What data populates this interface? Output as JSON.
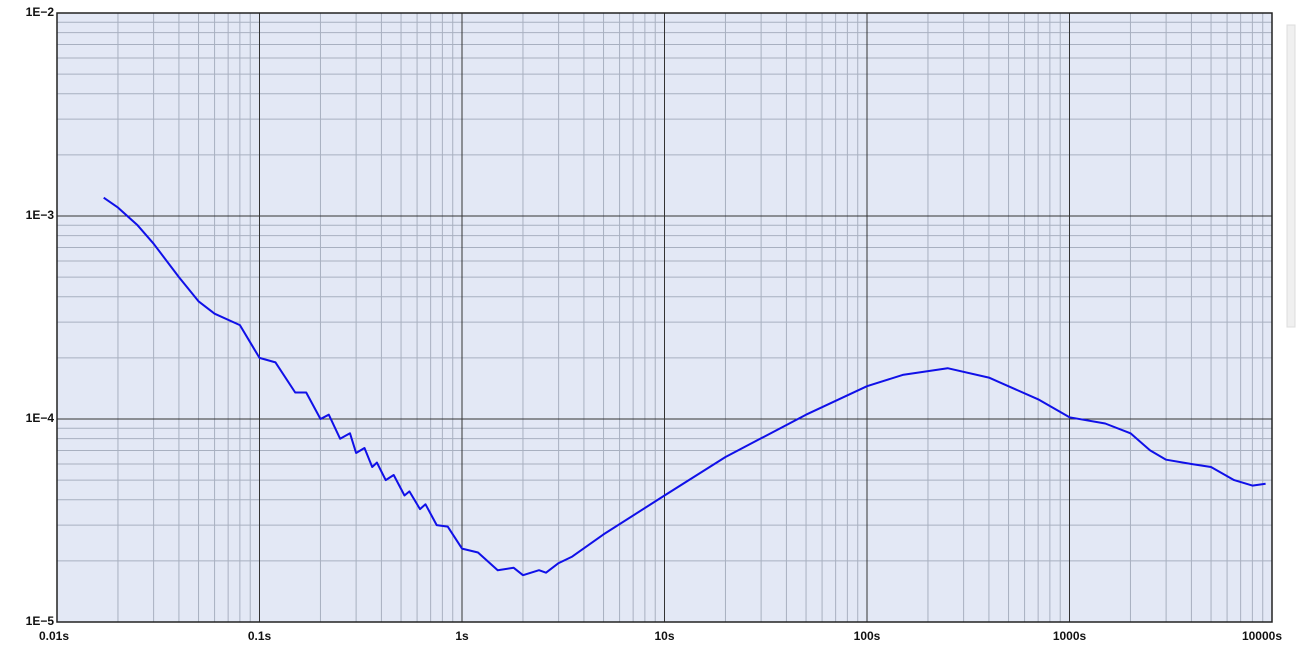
{
  "chart_data": {
    "type": "line",
    "x_log": true,
    "y_log": true,
    "grid": true,
    "minor_grid": true,
    "xlim": [
      0.01,
      10000
    ],
    "ylim": [
      1e-05,
      0.01
    ],
    "xticks": [
      {
        "value": 0.01,
        "label": "0.01s"
      },
      {
        "value": 0.1,
        "label": "0.1s"
      },
      {
        "value": 1,
        "label": "1s"
      },
      {
        "value": 10,
        "label": "10s"
      },
      {
        "value": 100,
        "label": "100s"
      },
      {
        "value": 1000,
        "label": "1000s"
      },
      {
        "value": 10000,
        "label": "10000s"
      }
    ],
    "yticks": [
      {
        "value": 1e-05,
        "label": "1E−5"
      },
      {
        "value": 0.0001,
        "label": "1E−4"
      },
      {
        "value": 0.001,
        "label": "1E−3"
      },
      {
        "value": 0.01,
        "label": "1E−2"
      }
    ],
    "x": [
      0.017,
      0.02,
      0.025,
      0.03,
      0.04,
      0.05,
      0.06,
      0.08,
      0.1,
      0.12,
      0.15,
      0.17,
      0.2,
      0.22,
      0.25,
      0.28,
      0.3,
      0.33,
      0.36,
      0.38,
      0.42,
      0.46,
      0.52,
      0.55,
      0.62,
      0.66,
      0.75,
      0.85,
      1.0,
      1.2,
      1.5,
      1.8,
      2.0,
      2.4,
      2.6,
      3.0,
      3.5,
      5,
      10,
      20,
      50,
      100,
      150,
      250,
      400,
      700,
      1000,
      1500,
      2000,
      2500,
      3000,
      4000,
      5000,
      6500,
      8000,
      9300
    ],
    "series": [
      {
        "color": "#1010e8",
        "values": [
          0.00123,
          0.0011,
          0.0009,
          0.00073,
          0.0005,
          0.00038,
          0.00033,
          0.00029,
          0.0002,
          0.00019,
          0.000135,
          0.000135,
          0.0001,
          0.000105,
          8e-05,
          8.5e-05,
          6.8e-05,
          7.2e-05,
          5.8e-05,
          6.1e-05,
          5e-05,
          5.3e-05,
          4.2e-05,
          4.4e-05,
          3.6e-05,
          3.8e-05,
          3e-05,
          2.95e-05,
          2.3e-05,
          2.2e-05,
          1.8e-05,
          1.85e-05,
          1.7e-05,
          1.8e-05,
          1.75e-05,
          1.95e-05,
          2.1e-05,
          2.7e-05,
          4.2e-05,
          6.5e-05,
          0.000105,
          0.000145,
          0.000165,
          0.000178,
          0.00016,
          0.000125,
          0.000102,
          9.5e-05,
          8.5e-05,
          7e-05,
          6.3e-05,
          6e-05,
          5.8e-05,
          5e-05,
          4.7e-05,
          4.8e-05
        ]
      }
    ]
  }
}
